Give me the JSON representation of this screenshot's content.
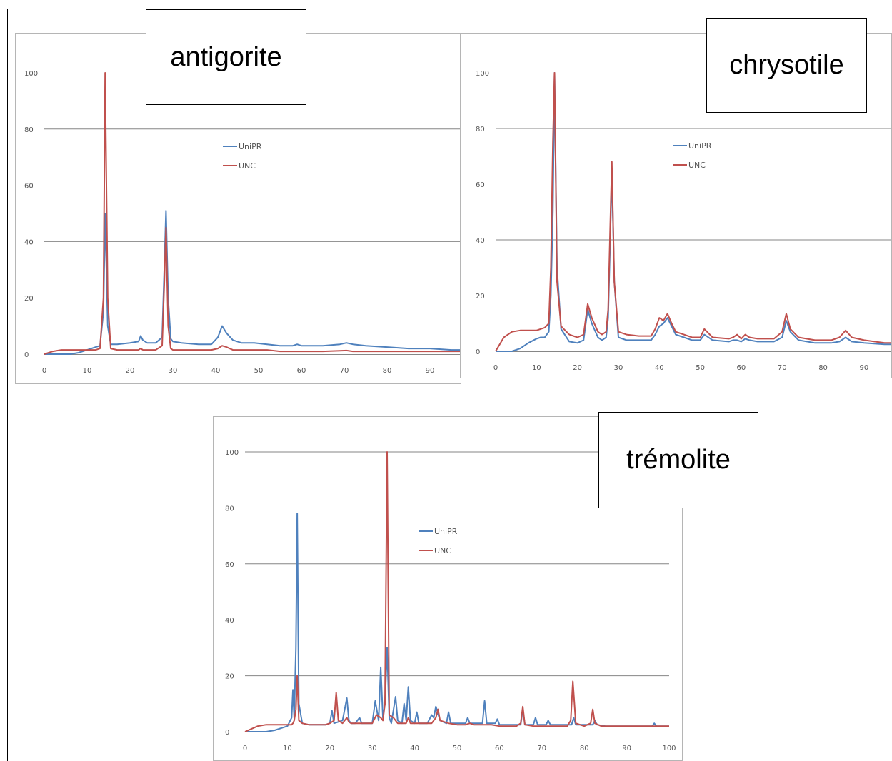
{
  "colors": {
    "UniPR": "#4f81bd",
    "UNC": "#c0504d",
    "gridline": "#868686",
    "frame": "#b5b5b5"
  },
  "chart_data": [
    {
      "type": "line",
      "label": "antigorite",
      "xlim": [
        0,
        97
      ],
      "ylim": [
        0,
        100
      ],
      "xticks": [
        0,
        10,
        20,
        30,
        40,
        50,
        60,
        70,
        80,
        90
      ],
      "yticks": [
        0,
        20,
        40,
        60,
        80,
        100
      ],
      "gridlines_y": [
        40,
        80
      ],
      "legend_position": "center-right",
      "series": [
        {
          "name": "UniPR",
          "x": [
            0,
            2,
            4,
            6,
            8,
            10,
            12,
            13,
            13.8,
            14.2,
            14.8,
            15.5,
            17,
            20,
            22,
            22.5,
            23,
            24,
            26,
            27.5,
            28,
            28.4,
            28.9,
            29.5,
            30,
            32,
            36,
            39,
            40.5,
            41.5,
            42.5,
            44,
            46,
            49,
            52,
            55,
            58,
            59,
            60,
            65,
            69,
            70.5,
            72,
            75,
            80,
            85,
            90,
            95,
            97
          ],
          "y": [
            0,
            0,
            0,
            0,
            0.5,
            1.5,
            2.5,
            3,
            15,
            50,
            10,
            3.5,
            3.5,
            4,
            4.5,
            6.5,
            5,
            4,
            4,
            6,
            30,
            51,
            20,
            5.5,
            4.5,
            4,
            3.5,
            3.5,
            6,
            10,
            7.5,
            5,
            4,
            4,
            3.5,
            3,
            3,
            3.5,
            3,
            3,
            3.5,
            4,
            3.5,
            3,
            2.5,
            2,
            2,
            1.5,
            1.5
          ]
        },
        {
          "name": "UNC",
          "x": [
            0,
            2,
            4,
            6,
            8,
            10,
            12,
            13,
            13.8,
            14.2,
            14.8,
            15.5,
            17,
            20,
            22,
            22.5,
            23,
            24,
            26,
            27.5,
            28,
            28.4,
            28.9,
            29.5,
            30,
            32,
            36,
            39,
            40.5,
            41.5,
            42.5,
            44,
            46,
            49,
            52,
            55,
            58,
            59,
            60,
            65,
            69,
            70.5,
            72,
            75,
            80,
            85,
            90,
            95,
            97
          ],
          "y": [
            0,
            1,
            1.5,
            1.5,
            1.5,
            1.5,
            1.5,
            2,
            20,
            100,
            20,
            2,
            1.5,
            1.5,
            1.5,
            2,
            1.5,
            1.5,
            1.5,
            3,
            25,
            45,
            10,
            2,
            1.5,
            1.5,
            1.5,
            1.5,
            2,
            3,
            2.5,
            1.5,
            1.5,
            1.5,
            1.5,
            1,
            1,
            1,
            1,
            1,
            1.2,
            1.3,
            1,
            1,
            1,
            1,
            1,
            1,
            1
          ]
        }
      ]
    },
    {
      "type": "line",
      "label": "chrysotile",
      "xlim": [
        0,
        97
      ],
      "ylim": [
        0,
        100
      ],
      "xticks": [
        0,
        10,
        20,
        30,
        40,
        50,
        60,
        70,
        80,
        90
      ],
      "yticks": [
        0,
        20,
        40,
        60,
        80,
        100
      ],
      "gridlines_y": [
        40,
        80
      ],
      "legend_position": "center-right",
      "series": [
        {
          "name": "UniPR",
          "x": [
            0,
            2,
            4,
            6,
            8,
            10,
            11,
            12,
            13,
            13.5,
            14,
            14.4,
            15,
            16,
            18,
            20,
            21.5,
            22.5,
            23.5,
            25,
            26,
            27,
            27.5,
            28,
            28.4,
            29,
            30,
            32,
            35,
            38,
            39,
            40,
            41,
            42,
            43,
            44,
            46,
            48,
            50,
            51,
            53,
            57,
            58,
            59,
            60,
            61,
            62,
            64,
            68,
            70,
            71,
            72,
            74,
            78,
            82,
            84,
            85.5,
            87,
            90,
            95,
            97
          ],
          "y": [
            0,
            0,
            0,
            1,
            3,
            4.5,
            5,
            5,
            7,
            20,
            50,
            100,
            30,
            8,
            3.5,
            3,
            4,
            15,
            10,
            5,
            4,
            5,
            12,
            40,
            65,
            25,
            5,
            4,
            4,
            4,
            6,
            9,
            10,
            12,
            9,
            6,
            5,
            4,
            4,
            6,
            4,
            3.5,
            4,
            4,
            3.5,
            4.5,
            4,
            3.5,
            3.5,
            5,
            11,
            7,
            4,
            3,
            3,
            3.5,
            5,
            3.5,
            3,
            2.5,
            2.5
          ]
        },
        {
          "name": "UNC",
          "x": [
            0,
            2,
            4,
            6,
            8,
            10,
            11,
            12,
            13,
            13.5,
            14,
            14.4,
            15,
            16,
            18,
            20,
            21.5,
            22.5,
            23.5,
            25,
            26,
            27,
            27.5,
            28,
            28.4,
            29,
            30,
            32,
            35,
            38,
            39,
            40,
            41,
            42,
            43,
            44,
            46,
            48,
            50,
            51,
            53,
            57,
            58,
            59,
            60,
            61,
            62,
            64,
            68,
            70,
            71,
            72,
            74,
            78,
            82,
            84,
            85.5,
            87,
            90,
            95,
            97
          ],
          "y": [
            0,
            5,
            7,
            7.5,
            7.5,
            7.5,
            8,
            8.5,
            10,
            30,
            75,
            100,
            25,
            9,
            6,
            5,
            6,
            17,
            12,
            7,
            6,
            7,
            15,
            45,
            68,
            25,
            7,
            6,
            5.5,
            5.5,
            8,
            12,
            11,
            13.5,
            10,
            7,
            6,
            5,
            5,
            8,
            5,
            4.5,
            5,
            6,
            4.5,
            6,
            5,
            4.5,
            4.5,
            7,
            13.5,
            8,
            5,
            4,
            4,
            5,
            7.5,
            5,
            4,
            3,
            3
          ]
        }
      ]
    },
    {
      "type": "line",
      "label": "trémolite",
      "xlim": [
        0,
        100
      ],
      "ylim": [
        0,
        100
      ],
      "xticks": [
        0,
        10,
        20,
        30,
        40,
        50,
        60,
        70,
        80,
        90,
        100
      ],
      "yticks": [
        0,
        20,
        40,
        60,
        80,
        100
      ],
      "gridlines_y": [
        20,
        60,
        100
      ],
      "legend_position": "center-right",
      "series": [
        {
          "name": "UniPR",
          "x": [
            0,
            3,
            5,
            7,
            9,
            10,
            11,
            11.3,
            11.6,
            12,
            12.3,
            12.7,
            13.5,
            15,
            19,
            20,
            20.5,
            21,
            23,
            24,
            24.5,
            25,
            26,
            27,
            27.5,
            28,
            30,
            30.7,
            31.5,
            32,
            32.5,
            33,
            33.5,
            34,
            34.5,
            35.5,
            36,
            37,
            37.5,
            38,
            38.5,
            39,
            40,
            40.5,
            41,
            43,
            44,
            44.5,
            45,
            46,
            47.5,
            48,
            48.5,
            52,
            52.5,
            53,
            56,
            56.5,
            57,
            59,
            59.5,
            60,
            65,
            65.5,
            66,
            68,
            68.5,
            69,
            71,
            71.5,
            72,
            75,
            77,
            77.5,
            78,
            82,
            82.5,
            83,
            85,
            90,
            96,
            96.5,
            97,
            100
          ],
          "y": [
            0,
            0,
            0,
            0.5,
            1.5,
            2,
            5,
            15,
            5,
            30,
            78,
            10,
            3,
            2.5,
            2.5,
            3,
            7.5,
            3,
            4,
            12,
            4,
            3,
            3,
            5,
            3,
            3,
            3,
            11,
            4,
            23,
            5,
            10,
            30,
            5,
            3,
            12.5,
            4,
            3,
            10,
            4,
            16,
            4,
            3,
            7,
            3,
            3,
            6,
            5,
            9,
            4,
            3,
            7,
            3,
            3,
            5,
            3,
            3,
            11,
            3,
            3,
            4.5,
            2.5,
            2.5,
            8,
            2.5,
            2.5,
            5,
            2.5,
            2.5,
            4,
            2.5,
            2.5,
            2.5,
            5,
            2.5,
            2.5,
            4,
            2.5,
            2,
            2,
            2,
            3,
            2,
            2
          ]
        },
        {
          "name": "UNC",
          "x": [
            0,
            3,
            5,
            7,
            9,
            10,
            11,
            11.3,
            11.6,
            12,
            12.3,
            12.7,
            13.5,
            15,
            19,
            20,
            21,
            21.5,
            22,
            23,
            24,
            24.5,
            25,
            26,
            27,
            28,
            30,
            31,
            32,
            32.5,
            33,
            33.5,
            34,
            35,
            36,
            37,
            38,
            38.5,
            39,
            40,
            41,
            43,
            44,
            45,
            45.5,
            46,
            48,
            50,
            52,
            53,
            54,
            56,
            57,
            58,
            60,
            62,
            64,
            65,
            65.5,
            66,
            68,
            70,
            72,
            74,
            76,
            76.8,
            77.3,
            78,
            80,
            81.5,
            82,
            82.5,
            84,
            86,
            88,
            90,
            95,
            100
          ],
          "y": [
            0,
            2,
            2.5,
            2.5,
            2.5,
            2.5,
            2.5,
            3,
            4,
            8,
            20,
            4,
            3,
            2.5,
            2.5,
            3,
            4,
            14,
            4,
            3,
            5,
            3.5,
            3,
            3,
            3,
            3,
            3,
            6,
            5,
            4,
            10,
            100,
            6,
            5,
            3,
            3,
            3,
            5,
            3,
            3,
            3,
            3,
            3,
            5,
            8,
            4,
            3,
            2.5,
            2.5,
            3,
            2.5,
            2.5,
            2.5,
            2.5,
            2,
            2,
            2,
            3,
            9,
            2.5,
            2,
            2,
            2,
            2,
            2,
            4,
            18,
            3,
            2,
            3,
            8,
            3,
            2,
            2,
            2,
            2,
            2,
            2
          ]
        }
      ]
    }
  ]
}
